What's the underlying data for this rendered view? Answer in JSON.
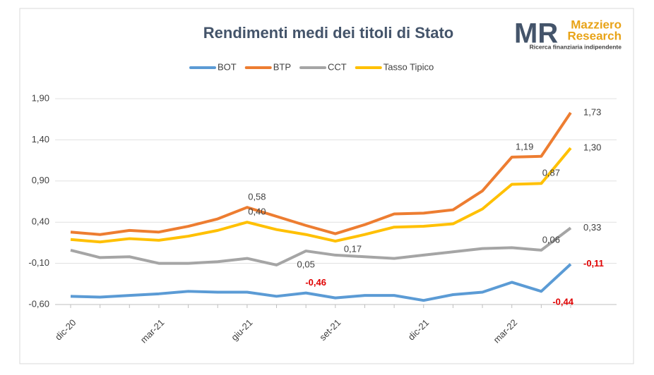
{
  "chart_data": {
    "type": "line",
    "title": "Rendimenti medi dei titoli di Stato",
    "categories": [
      "dic-20",
      null,
      null,
      "mar-21",
      null,
      null,
      "giu-21",
      null,
      null,
      "set-21",
      null,
      null,
      "dic-21",
      null,
      null,
      "mar-22",
      null,
      null
    ],
    "series": [
      {
        "name": "BOT",
        "color": "#5b9bd5",
        "values": [
          -0.5,
          -0.51,
          -0.49,
          -0.47,
          -0.44,
          -0.45,
          -0.45,
          -0.5,
          -0.46,
          -0.52,
          -0.49,
          -0.49,
          -0.55,
          -0.48,
          -0.45,
          -0.33,
          -0.44,
          -0.11
        ],
        "value_labels": [
          null,
          null,
          null,
          null,
          null,
          null,
          null,
          null,
          "-0,46",
          null,
          null,
          null,
          null,
          null,
          null,
          null,
          "-0,44",
          "-0,11"
        ]
      },
      {
        "name": "BTP",
        "color": "#ed7d31",
        "values": [
          0.28,
          0.25,
          0.3,
          0.28,
          0.35,
          0.44,
          0.58,
          0.47,
          0.36,
          0.26,
          0.37,
          0.5,
          0.51,
          0.55,
          0.78,
          1.19,
          1.2,
          1.73
        ],
        "value_labels": [
          null,
          null,
          null,
          null,
          null,
          null,
          "0,58",
          null,
          null,
          null,
          null,
          null,
          null,
          null,
          null,
          "1,19",
          null,
          "1,73"
        ]
      },
      {
        "name": "CCT",
        "color": "#a5a5a5",
        "values": [
          0.06,
          -0.03,
          -0.02,
          -0.1,
          -0.1,
          -0.08,
          -0.04,
          -0.12,
          0.05,
          0.0,
          -0.02,
          -0.04,
          0.0,
          0.04,
          0.08,
          0.09,
          0.06,
          0.33
        ],
        "value_labels": [
          null,
          null,
          null,
          null,
          null,
          null,
          null,
          null,
          "0,05",
          null,
          null,
          null,
          null,
          null,
          null,
          null,
          "0,06",
          "0,33"
        ]
      },
      {
        "name": "Tasso Tipico",
        "color": "#ffc000",
        "values": [
          0.19,
          0.16,
          0.2,
          0.18,
          0.23,
          0.3,
          0.4,
          0.31,
          0.25,
          0.17,
          0.25,
          0.34,
          0.35,
          0.38,
          0.56,
          0.86,
          0.87,
          1.3
        ],
        "value_labels": [
          null,
          null,
          null,
          null,
          null,
          null,
          "0,40",
          null,
          null,
          "0,17",
          null,
          null,
          null,
          null,
          null,
          null,
          "0,87",
          "1,30"
        ]
      }
    ],
    "ylim": [
      -0.6,
      1.9
    ],
    "yticks": [
      {
        "value": -0.6,
        "label": "-0,60"
      },
      {
        "value": -0.1,
        "label": "-0,10"
      },
      {
        "value": 0.4,
        "label": "0,40"
      },
      {
        "value": 0.9,
        "label": "0,90"
      },
      {
        "value": 1.4,
        "label": "1,40"
      },
      {
        "value": 1.9,
        "label": "1,90"
      }
    ],
    "grid": true,
    "legend": "top"
  },
  "logo": {
    "mark": "MR",
    "name1": "Mazziero",
    "name2": "Research",
    "tagline": "Ricerca finanziaria indipendente"
  }
}
